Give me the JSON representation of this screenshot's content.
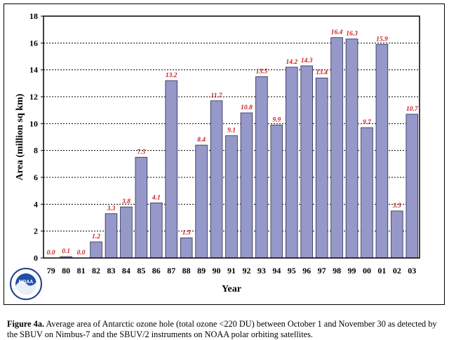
{
  "chart_data": {
    "type": "bar",
    "categories": [
      "79",
      "80",
      "81",
      "82",
      "83",
      "84",
      "85",
      "86",
      "87",
      "88",
      "89",
      "90",
      "91",
      "92",
      "93",
      "94",
      "95",
      "96",
      "97",
      "98",
      "99",
      "00",
      "01",
      "02",
      "03"
    ],
    "values": [
      0.0,
      0.1,
      0.0,
      1.2,
      3.3,
      3.8,
      7.5,
      4.1,
      13.2,
      1.5,
      8.4,
      11.7,
      9.1,
      10.8,
      13.5,
      9.9,
      14.2,
      14.3,
      13.4,
      16.4,
      16.3,
      9.7,
      15.9,
      3.5,
      10.7
    ],
    "value_labels": [
      "0.0",
      "0.1",
      "0.0",
      "1.2",
      "3.3",
      "3.8",
      "7.5",
      "4.1",
      "13.2",
      "1.5",
      "8.4",
      "11.7",
      "9.1",
      "10.8",
      "13.5",
      "9.9",
      "14.2",
      "14.3",
      "13.4",
      "16.4",
      "16.3",
      "9.7",
      "15.9",
      "3.5",
      "10.7"
    ],
    "yticks": [
      "0",
      "2",
      "4",
      "6",
      "8",
      "10",
      "12",
      "14",
      "16",
      "18"
    ],
    "xlabel": "Year",
    "ylabel": "Area (million sq km)",
    "ylim": [
      0,
      18
    ],
    "grid": "horizontal dotted",
    "bar_color": "#9598c8",
    "label_color": "#d01c1c"
  },
  "logo": {
    "text": "NOAA"
  },
  "caption": {
    "label": "Figure 4a.",
    "text": " Average area of Antarctic ozone hole (total ozone <220 DU) between October 1 and November 30 as detected by the SBUV on Nimbus-7 and the SBUV/2 instruments on NOAA polar orbiting satellites."
  }
}
